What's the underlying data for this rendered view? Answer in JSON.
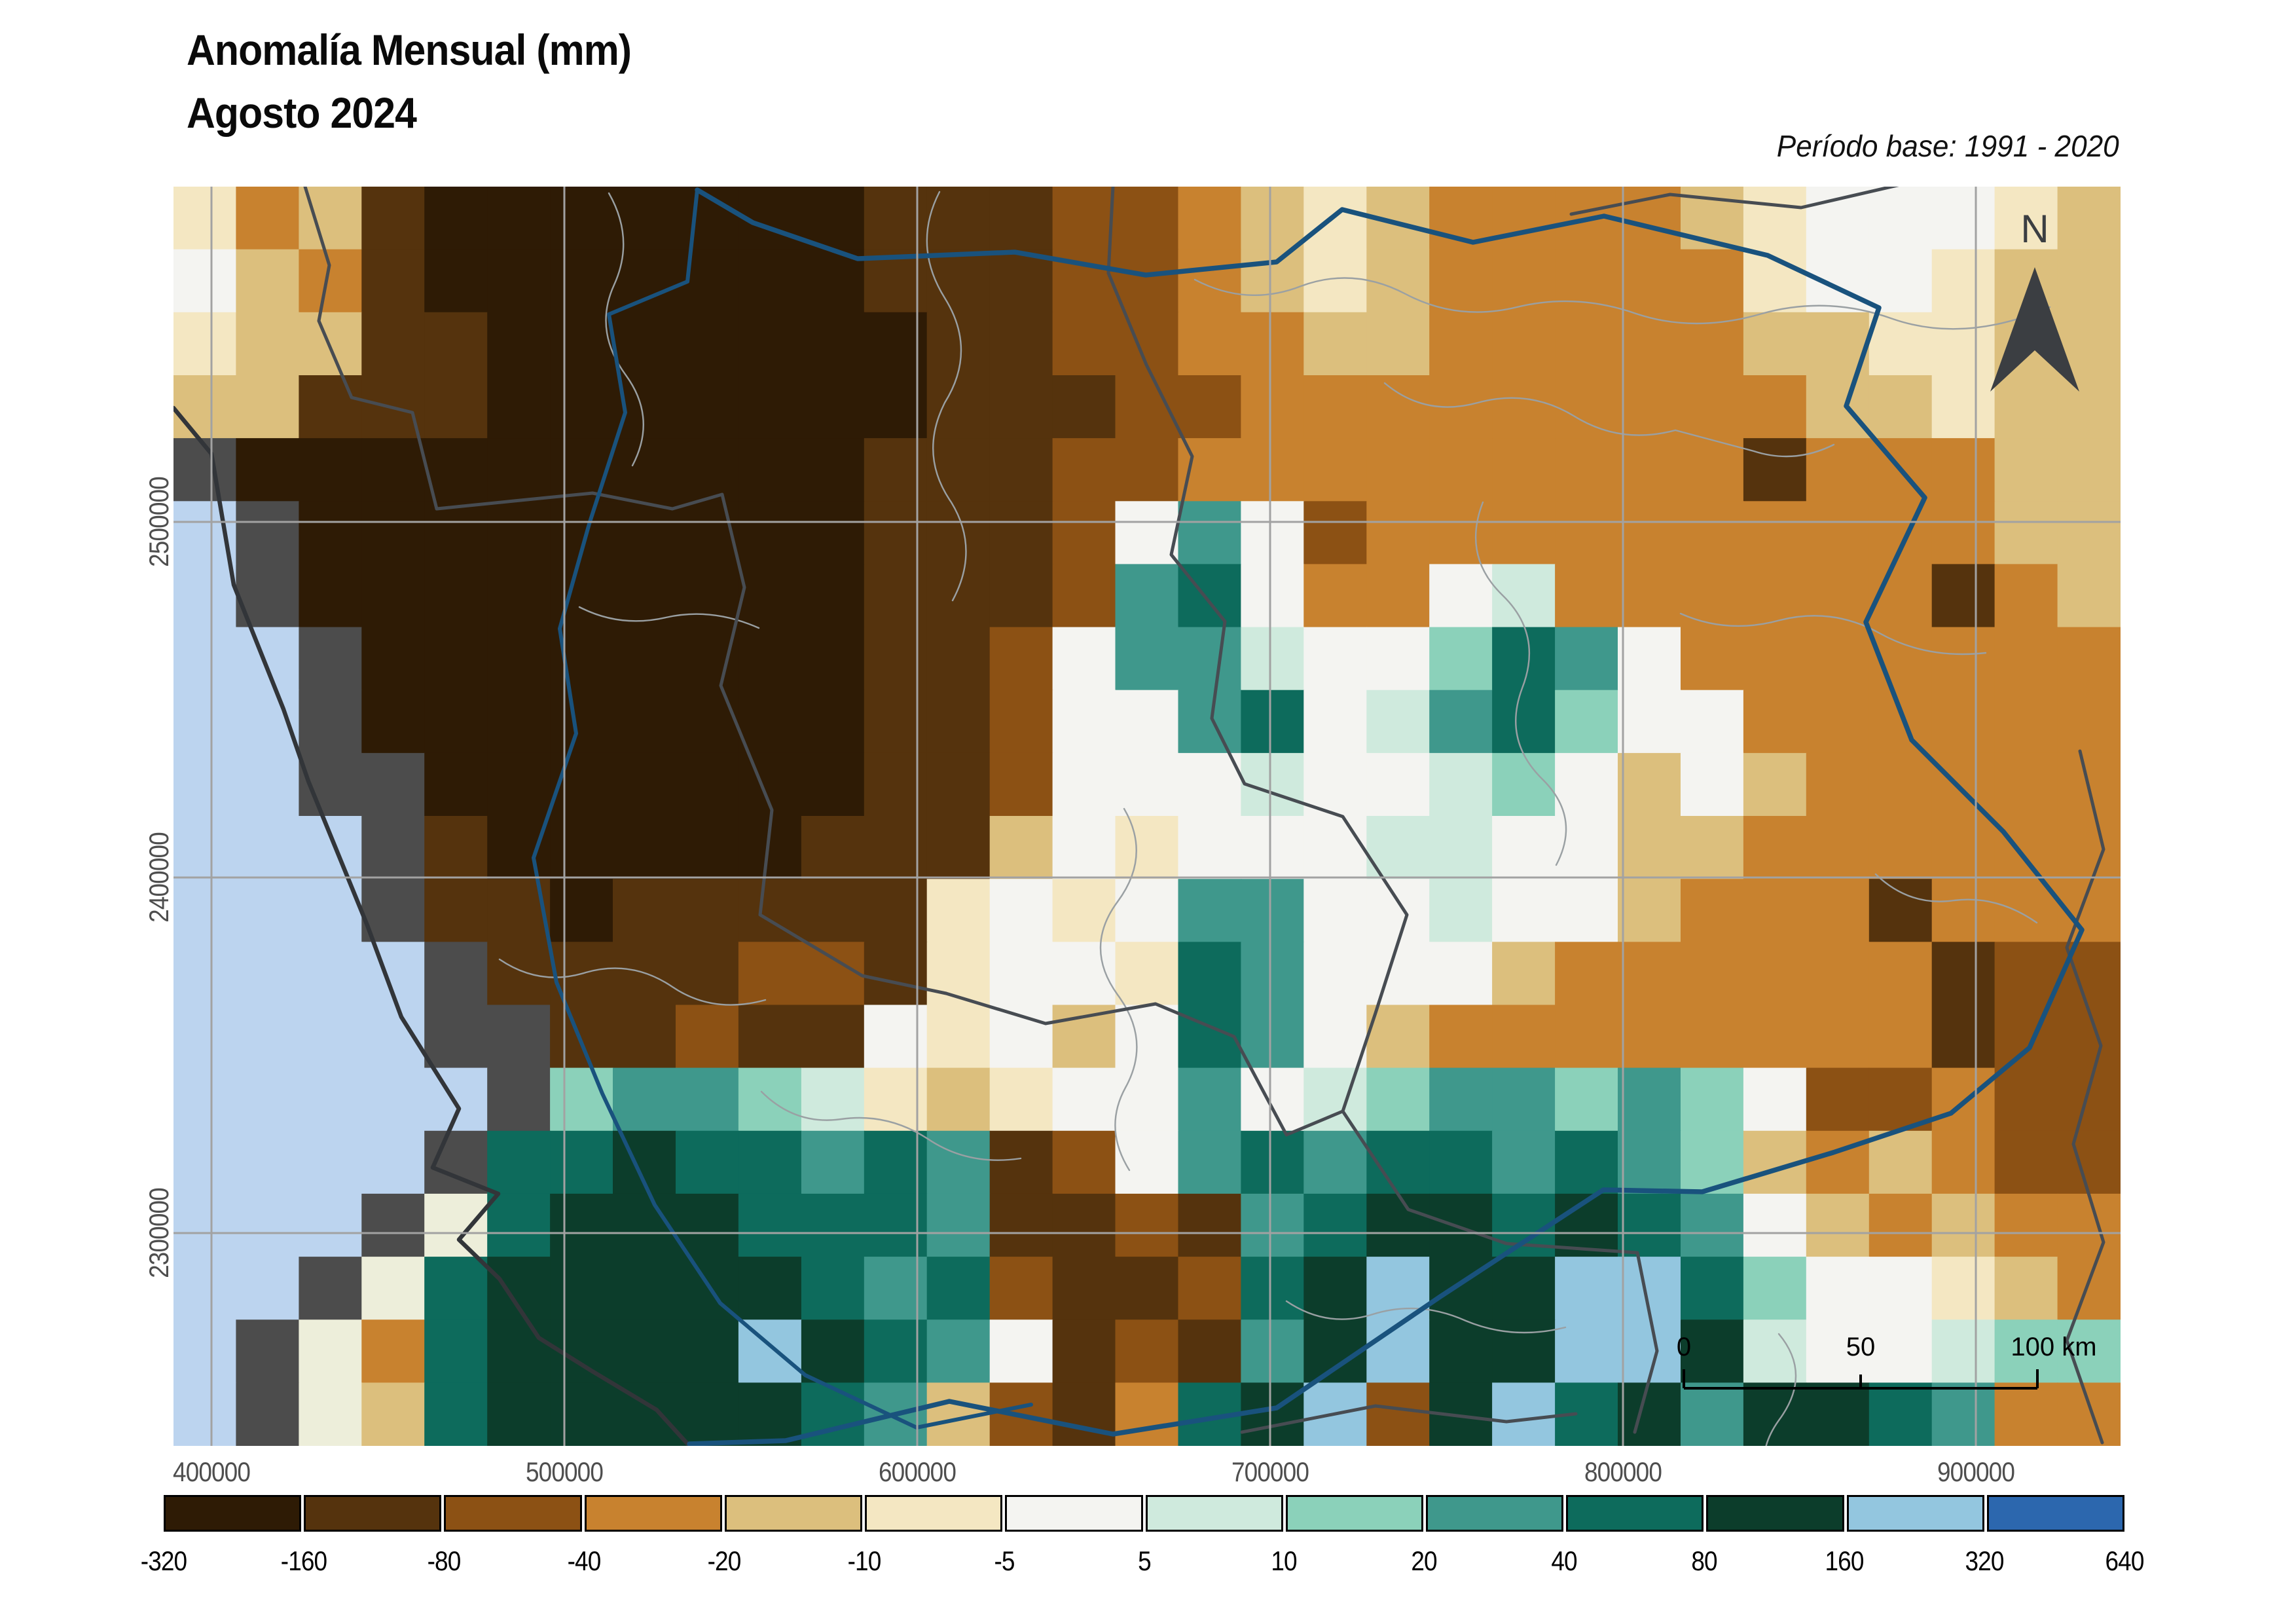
{
  "header": {
    "title_line1": "Anomalía Mensual (mm)",
    "title_line2": "Agosto 2024",
    "base_period": "Período base: 1991 - 2020"
  },
  "map": {
    "north_label": "N",
    "x_axis_ticks": [
      "400000",
      "500000",
      "600000",
      "700000",
      "800000",
      "900000"
    ],
    "y_axis_ticks": [
      "2500000",
      "2400000",
      "2300000"
    ],
    "scalebar_labels": [
      "0",
      "50",
      "100 km"
    ],
    "raster": {
      "cols": 31,
      "rows_count": 20,
      "palette": {
        "A": "#2e1b05",
        "B": "#55330d",
        "C": "#8c5114",
        "D": "#c8822f",
        "E": "#dcbf7d",
        "F": "#f4e7c2",
        "G": "#f4f4f1",
        "H": "#cfeadd",
        "I": "#8bd1ba",
        "J": "#3f988c",
        "K": "#0d6b5c",
        "L": "#0c3d2b",
        "M": "#93c6df",
        "N": "#2c67ae",
        "O": "#bcd4ef",
        "X": "#4c4c4c",
        "Y": "#edeeda"
      },
      "rows": [
        "FDEBAAAAAAABBBCCDEFEDDDDEFGGGFE",
        "GEDBAAAAAAABBBCCDEFEDDDDDFGGFEE",
        "FEEBBAAAAAAABBCCDDEEDDDDDEEFFEE",
        "EEBBBAAAAAAABBBCCDDDDDDDDDEEFEE",
        "XAAAAAAAAAABBBCCDDDDDDDDDBDDDEE",
        "OXAAAAAAAAABBBCGJGCDDDDDDDDDDEE",
        "OXAAAAAAAAABBBCJKGDDGHDDDDDDBDE",
        "OOXAAAAAAAABBCGJJHGGIKJGDDDDDDD",
        "OOXAAAAAAAABBCGGJKGHJKIGGDDDDDD",
        "OOXXAAAAAAABBCGGGHGGHIGEGEDDDDD",
        "OOOXBAAAAABBBEGFGGGHHGGEEDDDDDD",
        "OOOXBBABBBBBFGFGJJGGHGGEDDDBDDD",
        "OOOOXBBBBCCBFGGFKJGGGEDDDDDDBCC",
        "OOOOXXBBCBBGFGEGKJGEDDDDDDDDBCC",
        "OOOOOXIJJIHFEFGGJGHIJJIJIGCCDCC",
        "OOOOXKKLKKJKJBCGJKJKKJKJIEDEDCC",
        "OOOXYKLLLKKKJBBCBJKLLKLKJGEDEDD",
        "OOXYKLLLLLKJKCBBCKLMLLMMKIGGFED",
        "OXYDKLLLLMLKJGBCBJLMLLMMLHGGHII",
        "OXYEKLLLLLKJECBDKLMCLMKLJLLKJDD"
      ]
    }
  },
  "colorbar": {
    "breaks": [
      "-320",
      "-160",
      "-80",
      "-40",
      "-20",
      "-10",
      "-5",
      "5",
      "10",
      "20",
      "40",
      "80",
      "160",
      "320",
      "640"
    ],
    "class_colors": [
      "#2e1b05",
      "#55330d",
      "#8c5114",
      "#c8822f",
      "#dcbf7d",
      "#f4e7c2",
      "#f4f4f1",
      "#cfeadd",
      "#8bd1ba",
      "#3f988c",
      "#0d6b5c",
      "#0c3d2b",
      "#93c6df",
      "#2c67ae"
    ]
  },
  "style_colors": {
    "river": "#19527d",
    "state_boundary": "#474c52",
    "municipal_boundary": "#9aa0a3",
    "coastline": "#323539",
    "gridline": "#a2a2a2",
    "scalebar": "#000000",
    "north_arrow": "#3b3e42"
  }
}
